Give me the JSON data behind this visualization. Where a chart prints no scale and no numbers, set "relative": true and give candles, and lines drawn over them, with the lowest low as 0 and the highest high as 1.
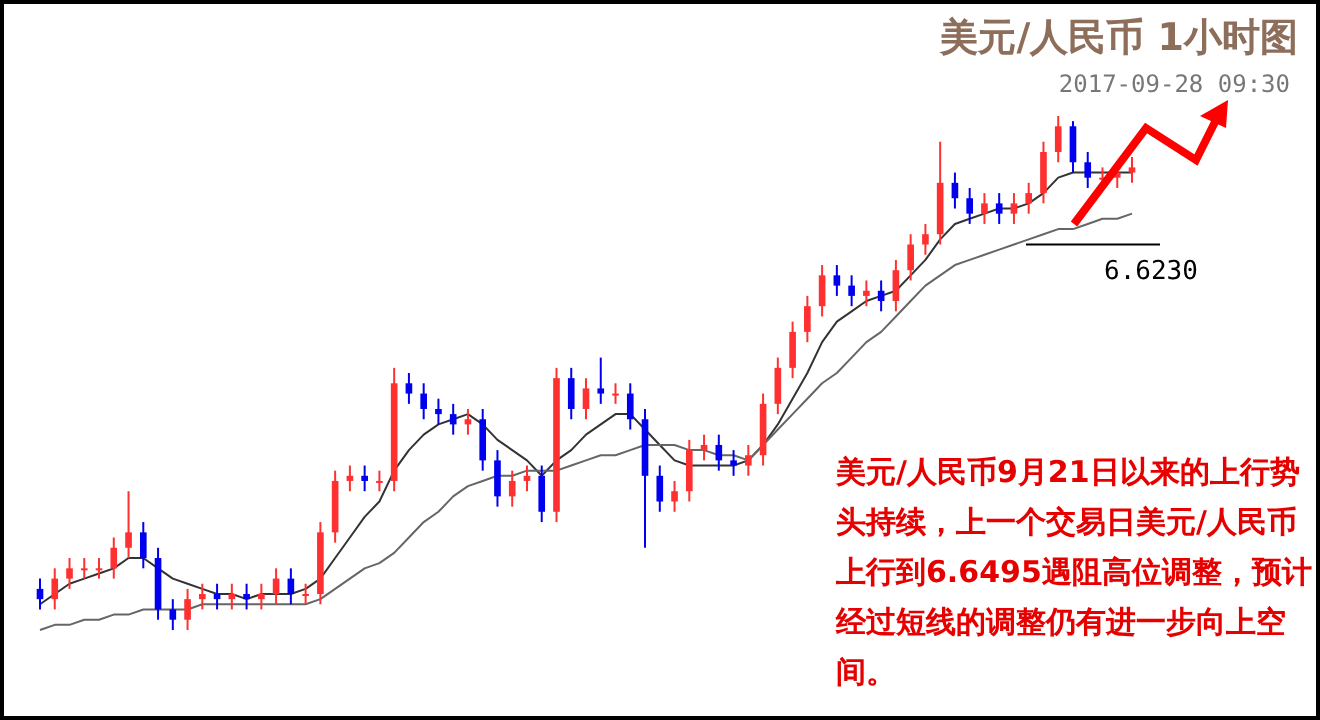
{
  "chart_data": {
    "type": "candlestick",
    "title": "美元/人民币 1小时图",
    "subtitle": "2017-09-28 09:30",
    "relative": true,
    "categories": [
      null,
      null,
      null,
      null,
      null,
      null,
      null,
      null,
      null,
      null,
      null,
      null,
      null,
      null,
      null,
      null,
      null,
      null,
      null,
      null,
      null,
      null,
      null,
      null,
      null,
      null,
      null,
      null,
      null,
      null,
      null,
      null,
      null,
      null,
      null,
      null,
      null,
      null,
      null,
      null,
      null,
      null,
      null,
      null,
      null,
      null,
      null,
      null,
      null,
      null,
      null,
      null,
      null,
      null,
      null,
      null,
      null,
      null,
      null,
      null,
      null,
      null,
      null,
      null,
      null,
      null,
      null,
      null,
      null,
      null,
      null,
      null,
      null,
      null,
      null
    ],
    "ohlc": [
      [
        0.08,
        0.1,
        0.04,
        0.06
      ],
      [
        0.06,
        0.12,
        0.04,
        0.1
      ],
      [
        0.1,
        0.14,
        0.08,
        0.12
      ],
      [
        0.12,
        0.14,
        0.1,
        0.12
      ],
      [
        0.12,
        0.14,
        0.1,
        0.12
      ],
      [
        0.12,
        0.18,
        0.1,
        0.16
      ],
      [
        0.16,
        0.27,
        0.14,
        0.19
      ],
      [
        0.19,
        0.21,
        0.12,
        0.14
      ],
      [
        0.14,
        0.16,
        0.02,
        0.04
      ],
      [
        0.04,
        0.06,
        0,
        0.02
      ],
      [
        0.02,
        0.08,
        0,
        0.06
      ],
      [
        0.06,
        0.09,
        0.04,
        0.07
      ],
      [
        0.07,
        0.09,
        0.04,
        0.06
      ],
      [
        0.06,
        0.09,
        0.04,
        0.07
      ],
      [
        0.07,
        0.09,
        0.04,
        0.06
      ],
      [
        0.06,
        0.09,
        0.04,
        0.07
      ],
      [
        0.07,
        0.12,
        0.05,
        0.1
      ],
      [
        0.1,
        0.12,
        0.05,
        0.07
      ],
      [
        0.07,
        0.09,
        0.05,
        0.07
      ],
      [
        0.07,
        0.21,
        0.05,
        0.19
      ],
      [
        0.19,
        0.31,
        0.17,
        0.29
      ],
      [
        0.29,
        0.32,
        0.27,
        0.3
      ],
      [
        0.3,
        0.32,
        0.27,
        0.29
      ],
      [
        0.29,
        0.31,
        0.27,
        0.29
      ],
      [
        0.29,
        0.51,
        0.27,
        0.48
      ],
      [
        0.48,
        0.5,
        0.44,
        0.46
      ],
      [
        0.46,
        0.48,
        0.41,
        0.43
      ],
      [
        0.43,
        0.45,
        0.4,
        0.42
      ],
      [
        0.42,
        0.44,
        0.38,
        0.4
      ],
      [
        0.4,
        0.43,
        0.38,
        0.41
      ],
      [
        0.41,
        0.43,
        0.31,
        0.33
      ],
      [
        0.33,
        0.35,
        0.24,
        0.26
      ],
      [
        0.26,
        0.31,
        0.24,
        0.29
      ],
      [
        0.29,
        0.32,
        0.27,
        0.3
      ],
      [
        0.3,
        0.32,
        0.21,
        0.23
      ],
      [
        0.23,
        0.51,
        0.21,
        0.49
      ],
      [
        0.49,
        0.51,
        0.41,
        0.43
      ],
      [
        0.43,
        0.49,
        0.41,
        0.47
      ],
      [
        0.47,
        0.53,
        0.44,
        0.46
      ],
      [
        0.46,
        0.48,
        0.44,
        0.46
      ],
      [
        0.46,
        0.48,
        0.39,
        0.41
      ],
      [
        0.41,
        0.43,
        0.16,
        0.3
      ],
      [
        0.3,
        0.32,
        0.23,
        0.25
      ],
      [
        0.25,
        0.29,
        0.23,
        0.27
      ],
      [
        0.27,
        0.37,
        0.25,
        0.35
      ],
      [
        0.35,
        0.38,
        0.33,
        0.36
      ],
      [
        0.36,
        0.38,
        0.31,
        0.33
      ],
      [
        0.33,
        0.35,
        0.3,
        0.32
      ],
      [
        0.32,
        0.36,
        0.3,
        0.34
      ],
      [
        0.34,
        0.46,
        0.32,
        0.44
      ],
      [
        0.44,
        0.53,
        0.42,
        0.51
      ],
      [
        0.51,
        0.6,
        0.49,
        0.58
      ],
      [
        0.58,
        0.65,
        0.56,
        0.63
      ],
      [
        0.63,
        0.71,
        0.61,
        0.69
      ],
      [
        0.69,
        0.71,
        0.65,
        0.67
      ],
      [
        0.67,
        0.69,
        0.63,
        0.65
      ],
      [
        0.65,
        0.68,
        0.63,
        0.66
      ],
      [
        0.66,
        0.68,
        0.62,
        0.64
      ],
      [
        0.64,
        0.72,
        0.62,
        0.7
      ],
      [
        0.7,
        0.77,
        0.68,
        0.75
      ],
      [
        0.75,
        0.79,
        0.73,
        0.77
      ],
      [
        0.77,
        0.95,
        0.75,
        0.87
      ],
      [
        0.87,
        0.89,
        0.82,
        0.84
      ],
      [
        0.84,
        0.86,
        0.79,
        0.81
      ],
      [
        0.81,
        0.85,
        0.79,
        0.83
      ],
      [
        0.83,
        0.85,
        0.79,
        0.81
      ],
      [
        0.81,
        0.85,
        0.79,
        0.83
      ],
      [
        0.83,
        0.87,
        0.81,
        0.85
      ],
      [
        0.85,
        0.95,
        0.83,
        0.93
      ],
      [
        0.93,
        1,
        0.91,
        0.98
      ],
      [
        0.98,
        0.99,
        0.89,
        0.91
      ],
      [
        0.91,
        0.93,
        0.86,
        0.88
      ],
      [
        0.88,
        0.9,
        0.86,
        0.88
      ],
      [
        0.88,
        0.91,
        0.86,
        0.89
      ],
      [
        0.89,
        0.92,
        0.87,
        0.9
      ]
    ],
    "series": [
      {
        "type": "line",
        "color": "#333333",
        "values": [
          0.05,
          0.07,
          0.09,
          0.1,
          0.11,
          0.12,
          0.14,
          0.14,
          0.12,
          0.1,
          0.09,
          0.08,
          0.07,
          0.07,
          0.06,
          0.07,
          0.07,
          0.07,
          0.08,
          0.1,
          0.14,
          0.18,
          0.22,
          0.25,
          0.31,
          0.35,
          0.38,
          0.4,
          0.41,
          0.42,
          0.4,
          0.37,
          0.35,
          0.33,
          0.3,
          0.33,
          0.35,
          0.38,
          0.4,
          0.42,
          0.42,
          0.39,
          0.36,
          0.33,
          0.32,
          0.32,
          0.32,
          0.32,
          0.33,
          0.36,
          0.4,
          0.45,
          0.5,
          0.56,
          0.6,
          0.62,
          0.64,
          0.65,
          0.66,
          0.69,
          0.72,
          0.76,
          0.79,
          0.8,
          0.81,
          0.82,
          0.82,
          0.83,
          0.85,
          0.88,
          0.89,
          0.89,
          0.89,
          0.89,
          0.89
        ]
      },
      {
        "type": "line",
        "color": "#666666",
        "values": [
          0.0,
          0.01,
          0.01,
          0.02,
          0.02,
          0.03,
          0.03,
          0.04,
          0.04,
          0.04,
          0.04,
          0.05,
          0.05,
          0.05,
          0.05,
          0.05,
          0.05,
          0.05,
          0.05,
          0.06,
          0.08,
          0.1,
          0.12,
          0.13,
          0.15,
          0.18,
          0.21,
          0.23,
          0.26,
          0.28,
          0.29,
          0.3,
          0.3,
          0.31,
          0.31,
          0.31,
          0.32,
          0.33,
          0.34,
          0.34,
          0.35,
          0.36,
          0.36,
          0.36,
          0.35,
          0.35,
          0.34,
          0.34,
          0.33,
          0.36,
          0.39,
          0.42,
          0.45,
          0.48,
          0.5,
          0.53,
          0.56,
          0.58,
          0.61,
          0.64,
          0.67,
          0.69,
          0.71,
          0.72,
          0.73,
          0.74,
          0.75,
          0.76,
          0.77,
          0.78,
          0.78,
          0.79,
          0.8,
          0.8,
          0.81
        ]
      }
    ],
    "ref_lines": [
      {
        "axis": "y",
        "value": 0.75,
        "color": "#000000"
      }
    ],
    "annotations": [
      {
        "text": "6.6230",
        "y": 0.75
      },
      "美元/人民币9月21日以来的上行势头持续，上一个交易日美元/人民币上行到6.6495遇阻高位调整，预计经过短线的调整仍有进一步向上空间。"
    ]
  }
}
